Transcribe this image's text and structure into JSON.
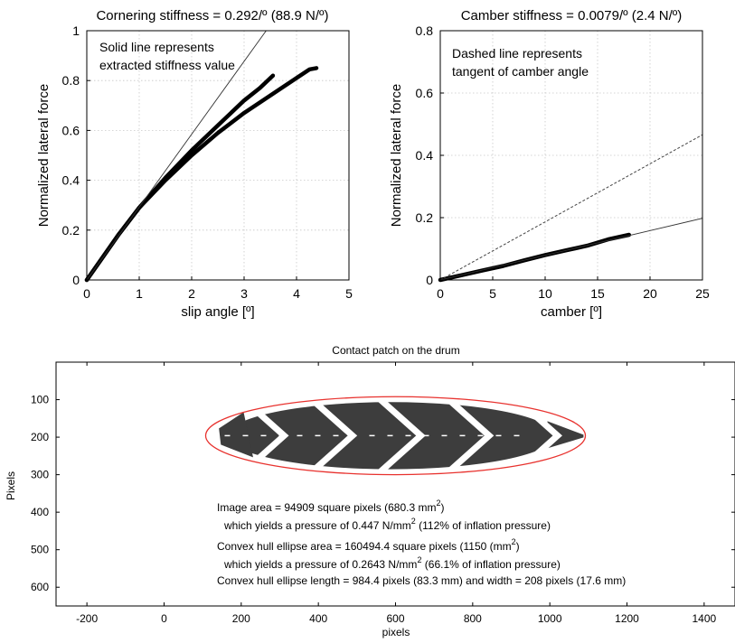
{
  "chart_data": [
    {
      "type": "line",
      "title": "Cornering stiffness = 0.292/º (88.9 N/º)",
      "xlabel": "slip angle [º]",
      "ylabel": "Normalized lateral force",
      "xlim": [
        0,
        5
      ],
      "ylim": [
        0,
        1
      ],
      "xticks": [
        "0",
        "1",
        "2",
        "3",
        "4",
        "5"
      ],
      "yticks": [
        "0",
        "0.2",
        "0.4",
        "0.6",
        "0.8",
        "1"
      ],
      "grid": true,
      "annotation": [
        "Solid line represents",
        "extracted stiffness value"
      ],
      "series": [
        {
          "style": "thick",
          "x": [
            0,
            0.3,
            0.6,
            1.0,
            1.5,
            2.0,
            2.5,
            3.0,
            3.3,
            3.55
          ],
          "y": [
            0,
            0.09,
            0.18,
            0.29,
            0.41,
            0.52,
            0.62,
            0.72,
            0.77,
            0.82
          ]
        },
        {
          "style": "thick",
          "x": [
            0,
            0.3,
            0.6,
            1.0,
            1.5,
            2.0,
            2.5,
            3.0,
            3.5,
            4.0,
            4.25,
            4.38
          ],
          "y": [
            0,
            0.09,
            0.18,
            0.29,
            0.4,
            0.5,
            0.59,
            0.67,
            0.74,
            0.81,
            0.845,
            0.85
          ]
        },
        {
          "style": "thin",
          "x": [
            0,
            3.42
          ],
          "y": [
            0,
            1.0
          ]
        }
      ]
    },
    {
      "type": "line",
      "title": "Camber stiffness = 0.0079/º (2.4 N/º)",
      "xlabel": "camber [º]",
      "ylabel": "Normalized lateral force",
      "xlim": [
        0,
        25
      ],
      "ylim": [
        0,
        0.8
      ],
      "xticks": [
        "0",
        "5",
        "10",
        "15",
        "20",
        "25"
      ],
      "yticks": [
        "0",
        "0.2",
        "0.4",
        "0.6",
        "0.8"
      ],
      "grid": true,
      "annotation": [
        "Dashed line represents",
        "tangent of camber angle"
      ],
      "series": [
        {
          "style": "thick",
          "x": [
            0,
            2,
            4,
            6,
            8,
            10,
            12,
            14,
            16,
            18
          ],
          "y": [
            0,
            0.015,
            0.03,
            0.045,
            0.063,
            0.08,
            0.095,
            0.11,
            0.13,
            0.145
          ]
        },
        {
          "style": "thin",
          "x": [
            0,
            25
          ],
          "y": [
            0,
            0.198
          ]
        },
        {
          "style": "dashed",
          "x": [
            0,
            25
          ],
          "y": [
            0,
            0.466
          ]
        }
      ]
    },
    {
      "type": "scatter",
      "title": "Contact patch on the drum",
      "xlabel": "pixels",
      "ylabel": "Pixels",
      "xlim": [
        -280,
        1480
      ],
      "ylim": [
        650,
        0
      ],
      "xticks": [
        "-200",
        "0",
        "200",
        "400",
        "600",
        "800",
        "1000",
        "1200",
        "1400"
      ],
      "yticks": [
        "100",
        "200",
        "300",
        "400",
        "500",
        "600"
      ],
      "grid": false,
      "ellipse": {
        "center": [
          600,
          196
        ],
        "length": 984.4,
        "width": 208,
        "color": "#e8322e"
      },
      "patch_color": "#3d3d3d",
      "lines": [
        {
          "text": "Image area = 94909 square pixels (680.3 mm",
          "sup": "2",
          "tail": ")"
        },
        {
          "text": "which yields a pressure of 0.447 N/mm",
          "sup": "2",
          "tail": " (112% of inflation pressure)"
        },
        {
          "text": "Convex hull ellipse area = 160494.4 square pixels (1150 (mm",
          "sup": "2",
          "tail": ")"
        },
        {
          "text": "which yields a pressure of 0.2643 N/mm",
          "sup": "2",
          "tail": " (66.1% of inflation pressure)"
        },
        {
          "text": "Convex hull ellipse length = 984.4 pixels (83.3 mm) and width = 208 pixels (17.6 mm)",
          "sup": "",
          "tail": ""
        }
      ]
    }
  ]
}
